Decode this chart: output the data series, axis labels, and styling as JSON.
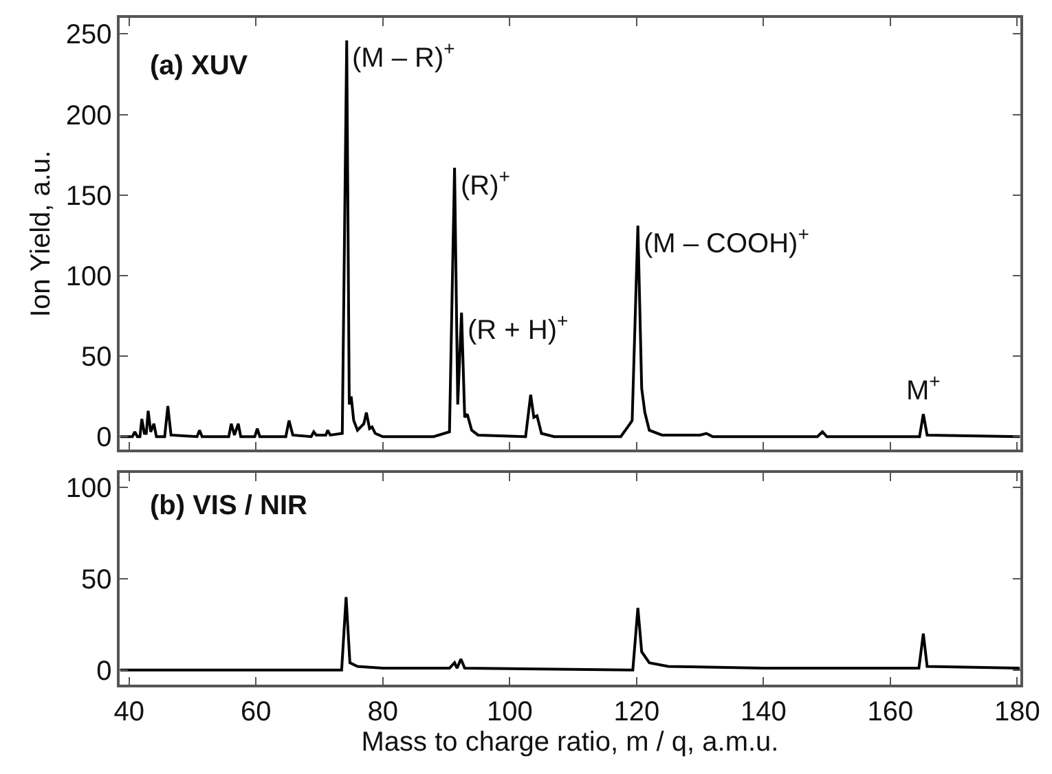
{
  "chart_data": [
    {
      "type": "line",
      "ylabel": "Ion Yield, a.u.",
      "xlim": [
        38.5,
        180.5
      ],
      "ylim": [
        -8,
        260
      ],
      "xticks": [
        40,
        60,
        80,
        100,
        120,
        140,
        160,
        180
      ],
      "yticks": [
        0,
        50,
        100,
        150,
        200,
        250
      ],
      "tick_labels": "y",
      "marker": "none",
      "line_style": "solid",
      "annotations": [
        "(a) XUV",
        {
          "text": "(M – R)$^{+}$",
          "x": 74.3,
          "y": 246
        },
        {
          "text": "(R)$^{+}$",
          "x": 91.3,
          "y": 167
        },
        {
          "text": "(R + H)$^{+}$",
          "x": 92.4,
          "y": 77
        },
        {
          "text": "(M – COOH)$^{+}$",
          "x": 120.2,
          "y": 131
        },
        {
          "text": "M$^{+}$",
          "x": 165.2,
          "y": 14
        }
      ],
      "x": [
        38.6,
        40.5,
        40.9,
        41.3,
        41.7,
        42.0,
        42.4,
        42.7,
        43.0,
        43.4,
        43.9,
        44.3,
        45.6,
        46.1,
        46.6,
        50.7,
        51.1,
        51.5,
        55.7,
        56.1,
        56.6,
        57.2,
        57.6,
        59.8,
        60.2,
        60.6,
        64.7,
        65.2,
        65.8,
        68.7,
        69.1,
        69.5,
        71.0,
        71.3,
        71.7,
        73.6,
        74.3,
        74.7,
        75.0,
        75.4,
        76.0,
        77.0,
        77.4,
        77.9,
        78.3,
        78.8,
        80,
        88,
        90.5,
        91.3,
        91.8,
        92.4,
        92.9,
        93.3,
        94,
        95,
        102.5,
        103.3,
        103.8,
        104.3,
        105,
        107,
        117.5,
        118.6,
        119.3,
        120.2,
        120.8,
        121.3,
        122,
        124,
        130,
        131,
        132,
        148.5,
        149.3,
        150,
        164.6,
        165.2,
        165.8,
        180.4
      ],
      "series": [
        {
          "color": "#000000",
          "values": [
            0,
            0,
            3,
            0,
            0,
            11,
            2,
            2,
            16,
            3,
            8,
            0,
            0,
            19,
            1,
            0,
            4,
            0,
            0,
            8,
            1,
            8,
            0,
            0,
            5,
            0,
            0,
            10,
            1,
            0,
            3,
            1,
            1,
            4,
            1,
            2,
            246,
            20,
            25,
            10,
            4,
            8,
            15,
            5,
            6,
            2,
            0,
            0,
            3,
            167,
            20,
            77,
            12,
            14,
            4,
            1,
            0,
            26,
            12,
            13,
            2,
            0,
            0,
            6,
            10,
            131,
            30,
            15,
            4,
            1,
            1,
            2,
            0,
            0,
            3,
            0,
            0,
            14,
            1,
            0
          ]
        }
      ]
    },
    {
      "type": "line",
      "xlabel": "Mass to charge ratio, m / q, a.m.u.",
      "xlim": [
        38.5,
        180.5
      ],
      "ylim": [
        -8,
        108
      ],
      "xticks": [
        40,
        60,
        80,
        100,
        120,
        140,
        160,
        180
      ],
      "yticks": [
        0,
        50,
        100
      ],
      "marker": "none",
      "line_style": "solid",
      "annotations": [
        "(b) VIS / NIR"
      ],
      "x": [
        38.6,
        73.5,
        74.2,
        74.8,
        76,
        80,
        90.5,
        91.3,
        91.7,
        92.3,
        92.9,
        119.4,
        120.2,
        120.8,
        122,
        125,
        140,
        164.5,
        165.2,
        165.8,
        180.4
      ],
      "series": [
        {
          "color": "#000000",
          "values": [
            0,
            0,
            40,
            4,
            2,
            1,
            1,
            4,
            1,
            6,
            1,
            0,
            34,
            10,
            4,
            2,
            1,
            1,
            20,
            2,
            1
          ]
        }
      ]
    }
  ]
}
